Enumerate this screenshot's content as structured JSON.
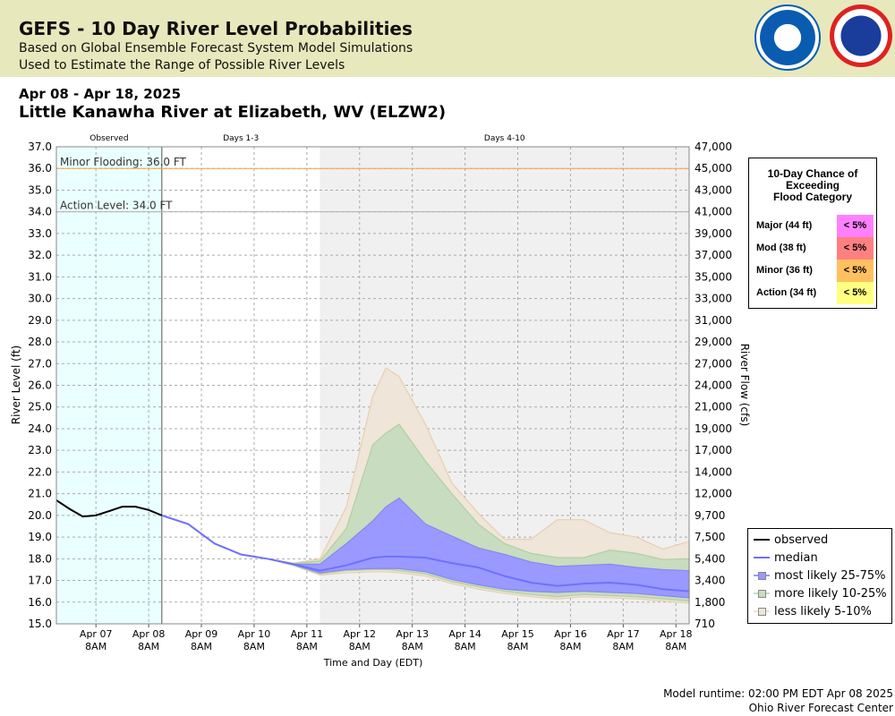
{
  "header": {
    "title": "GEFS - 10 Day River Level Probabilities",
    "subtitle1": "Based on Global Ensemble Forecast System Model Simulations",
    "subtitle2": "Used to Estimate the Range of Possible River Levels",
    "logos": [
      "NOAA",
      "National Weather Service"
    ]
  },
  "date_range": "Apr 08 - Apr 18, 2025",
  "location": "Little Kanawha River at Elizabeth, WV (ELZW2)",
  "probability_table": {
    "title": [
      "10-Day Chance of",
      "Exceeding",
      "Flood Category"
    ],
    "rows": [
      {
        "label": "Major (44 ft)",
        "value": "< 5%",
        "color": "#ff80ff"
      },
      {
        "label": "Mod (38 ft)",
        "value": "< 5%",
        "color": "#ff8080"
      },
      {
        "label": "Minor (36 ft)",
        "value": "< 5%",
        "color": "#ffc060"
      },
      {
        "label": "Action (34 ft)",
        "value": "< 5%",
        "color": "#ffff80"
      }
    ]
  },
  "footer": {
    "runtime": "Model runtime: 02:00 PM EDT Apr 08 2025",
    "center": "Ohio River Forecast Center"
  },
  "chart_data": {
    "type": "area",
    "xlabel": "Time and Day (EDT)",
    "ylabel": "River Level (ft)",
    "y2label": "River Flow (cfs)",
    "ylim": [
      15,
      37
    ],
    "xlim": [
      "2025-04-06 14:00",
      "2025-04-18 14:00"
    ],
    "grid": true,
    "yticks": [
      "15.0",
      "16.0",
      "17.0",
      "18.0",
      "19.0",
      "20.0",
      "21.0",
      "22.0",
      "23.0",
      "24.0",
      "25.0",
      "26.0",
      "27.0",
      "28.0",
      "29.0",
      "30.0",
      "31.0",
      "32.0",
      "33.0",
      "34.0",
      "35.0",
      "36.0",
      "37.0"
    ],
    "y2ticks": [
      "710",
      "1,800",
      "3,400",
      "5,400",
      "7,500",
      "9,700",
      "12,000",
      "14,000",
      "17,000",
      "19,000",
      "21,000",
      "24,000",
      "27,000",
      "29,000",
      "31,000",
      "33,000",
      "35,000",
      "37,000",
      "39,000",
      "41,000",
      "43,000",
      "45,000",
      "47,000"
    ],
    "xticks": [
      {
        "t": "2025-04-07 08:00",
        "day": "Apr 07",
        "hr": "8AM"
      },
      {
        "t": "2025-04-08 08:00",
        "day": "Apr 08",
        "hr": "8AM"
      },
      {
        "t": "2025-04-09 08:00",
        "day": "Apr 09",
        "hr": "8AM"
      },
      {
        "t": "2025-04-10 08:00",
        "day": "Apr 10",
        "hr": "8AM"
      },
      {
        "t": "2025-04-11 08:00",
        "day": "Apr 11",
        "hr": "8AM"
      },
      {
        "t": "2025-04-12 08:00",
        "day": "Apr 12",
        "hr": "8AM"
      },
      {
        "t": "2025-04-13 08:00",
        "day": "Apr 13",
        "hr": "8AM"
      },
      {
        "t": "2025-04-14 08:00",
        "day": "Apr 14",
        "hr": "8AM"
      },
      {
        "t": "2025-04-15 08:00",
        "day": "Apr 15",
        "hr": "8AM"
      },
      {
        "t": "2025-04-16 08:00",
        "day": "Apr 16",
        "hr": "8AM"
      },
      {
        "t": "2025-04-17 08:00",
        "day": "Apr 17",
        "hr": "8AM"
      },
      {
        "t": "2025-04-18 08:00",
        "day": "Apr 18",
        "hr": "8AM"
      }
    ],
    "periods": [
      {
        "label": "Observed",
        "start": "2025-04-06 14:00",
        "end": "2025-04-08 14:00",
        "color": "#eaffff"
      },
      {
        "label": "Days 1-3",
        "start": "2025-04-08 14:00",
        "end": "2025-04-11 14:00",
        "color": "#ffffff"
      },
      {
        "label": "Days 4-10",
        "start": "2025-04-11 14:00",
        "end": "2025-04-18 14:00",
        "color": "#f0f0f0"
      }
    ],
    "thresholds": [
      {
        "label": "Minor Flooding: 36.0 FT",
        "value": 36,
        "color": "#ffa040"
      },
      {
        "label": "Action Level: 34.0 FT",
        "value": 34,
        "color": "#b0b0b0"
      }
    ],
    "observed": {
      "name": "observed",
      "color": "#000000",
      "t": [
        "2025-04-06 14:00",
        "2025-04-06 20:00",
        "2025-04-07 02:00",
        "2025-04-07 08:00",
        "2025-04-07 14:00",
        "2025-04-07 20:00",
        "2025-04-08 02:00",
        "2025-04-08 08:00",
        "2025-04-08 14:00"
      ],
      "values": [
        20.7,
        20.3,
        19.95,
        20.0,
        20.2,
        20.4,
        20.4,
        20.25,
        20.0
      ]
    },
    "forecast_t": [
      "2025-04-08 14:00",
      "2025-04-09 02:00",
      "2025-04-09 14:00",
      "2025-04-10 02:00",
      "2025-04-10 14:00",
      "2025-04-11 02:00",
      "2025-04-11 14:00",
      "2025-04-12 02:00",
      "2025-04-12 14:00",
      "2025-04-12 20:00",
      "2025-04-13 02:00",
      "2025-04-13 14:00",
      "2025-04-14 02:00",
      "2025-04-14 14:00",
      "2025-04-15 02:00",
      "2025-04-15 14:00",
      "2025-04-16 02:00",
      "2025-04-16 14:00",
      "2025-04-17 02:00",
      "2025-04-17 14:00",
      "2025-04-18 02:00",
      "2025-04-18 14:00"
    ],
    "percentiles": {
      "p95": [
        20.0,
        19.6,
        18.7,
        18.2,
        18.0,
        17.8,
        18.0,
        20.4,
        25.5,
        26.8,
        26.4,
        24.2,
        21.5,
        20.1,
        18.9,
        18.9,
        19.8,
        19.8,
        19.2,
        19.0,
        18.45,
        18.8
      ],
      "p90": [
        20.0,
        19.6,
        18.7,
        18.2,
        18.0,
        17.78,
        17.9,
        19.4,
        23.25,
        23.8,
        24.2,
        22.5,
        21.0,
        19.6,
        18.7,
        18.25,
        18.05,
        18.05,
        18.4,
        18.25,
        17.97,
        18.0
      ],
      "p75": [
        20.0,
        19.6,
        18.7,
        18.2,
        18.0,
        17.75,
        17.75,
        18.7,
        19.75,
        20.4,
        20.8,
        19.6,
        19.05,
        18.5,
        18.2,
        17.85,
        17.65,
        17.7,
        17.75,
        17.6,
        17.5,
        17.45
      ],
      "p50": [
        20.0,
        19.6,
        18.7,
        18.2,
        18.0,
        17.75,
        17.45,
        17.7,
        18.05,
        18.1,
        18.1,
        18.05,
        17.8,
        17.6,
        17.2,
        16.9,
        16.75,
        16.85,
        16.9,
        16.8,
        16.6,
        16.5
      ],
      "p25": [
        20.0,
        19.6,
        18.7,
        18.2,
        18.0,
        17.72,
        17.35,
        17.5,
        17.55,
        17.55,
        17.55,
        17.4,
        17.05,
        16.8,
        16.6,
        16.5,
        16.45,
        16.5,
        16.45,
        16.4,
        16.3,
        16.2
      ],
      "p10": [
        20.0,
        19.6,
        18.7,
        18.2,
        18.0,
        17.7,
        17.3,
        17.45,
        17.5,
        17.5,
        17.45,
        17.3,
        16.95,
        16.7,
        16.5,
        16.35,
        16.25,
        16.35,
        16.3,
        16.25,
        16.15,
        16.05
      ],
      "p5": [
        20.0,
        19.6,
        18.7,
        18.2,
        18.0,
        17.68,
        17.25,
        17.35,
        17.4,
        17.4,
        17.35,
        17.2,
        16.85,
        16.6,
        16.4,
        16.25,
        16.15,
        16.25,
        16.2,
        16.15,
        16.05,
        15.95
      ]
    },
    "legend": [
      {
        "name": "observed",
        "color": "#000000"
      },
      {
        "name": "median",
        "color": "#7070ff"
      },
      {
        "name": "most likely 25-75%",
        "color": "#9999ff"
      },
      {
        "name": "more likely 10-25%",
        "color": "#c8dcc0"
      },
      {
        "name": "less likely 5-10%",
        "color": "#efe5d8"
      }
    ],
    "legend_position": "right"
  }
}
